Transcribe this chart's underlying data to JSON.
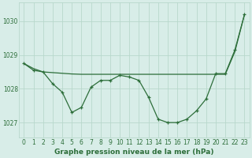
{
  "title": "Graphe pression niveau de la mer (hPa)",
  "background_color": "#d8ede8",
  "grid_color": "#b8d8cc",
  "line_color": "#2d6e3a",
  "xlim": [
    -0.5,
    23.5
  ],
  "ylim": [
    1026.55,
    1030.55
  ],
  "yticks": [
    1027,
    1028,
    1029,
    1030
  ],
  "xticks": [
    0,
    1,
    2,
    3,
    4,
    5,
    6,
    7,
    8,
    9,
    10,
    11,
    12,
    13,
    14,
    15,
    16,
    17,
    18,
    19,
    20,
    21,
    22,
    23
  ],
  "line1_x": [
    0,
    1,
    2,
    3,
    4,
    5,
    6,
    7,
    8,
    9,
    10,
    11,
    12,
    13,
    14,
    15,
    16,
    17,
    18,
    19,
    20,
    21,
    22,
    23
  ],
  "line1_y": [
    1028.75,
    1028.55,
    1028.5,
    1028.15,
    1027.9,
    1027.3,
    1027.45,
    1028.05,
    1028.25,
    1028.25,
    1028.4,
    1028.35,
    1028.25,
    1027.75,
    1027.1,
    1027.0,
    1027.0,
    1027.1,
    1027.35,
    1027.7,
    1028.45,
    1028.45,
    1029.15,
    1030.2
  ],
  "line2_x": [
    0,
    1,
    2,
    3,
    4,
    5,
    6,
    7,
    8,
    9,
    10,
    11,
    12,
    13,
    14,
    15,
    16,
    17,
    18,
    19,
    20,
    21,
    22,
    23
  ],
  "line2_y": [
    1028.75,
    1028.6,
    1028.5,
    1028.48,
    1028.46,
    1028.44,
    1028.43,
    1028.43,
    1028.43,
    1028.43,
    1028.43,
    1028.43,
    1028.43,
    1028.43,
    1028.43,
    1028.43,
    1028.43,
    1028.43,
    1028.43,
    1028.43,
    1028.43,
    1028.43,
    1029.1,
    1030.2
  ],
  "title_fontsize": 6.5,
  "tick_fontsize": 5.5
}
